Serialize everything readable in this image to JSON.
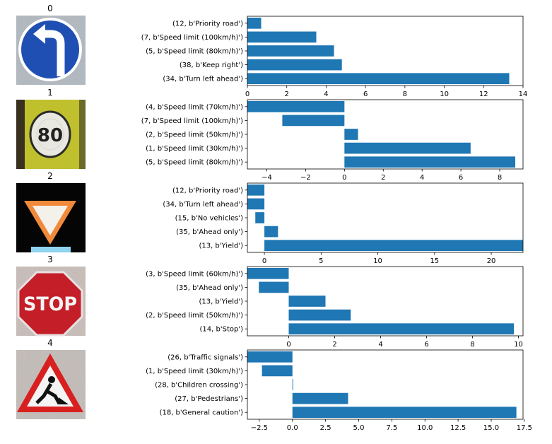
{
  "chart_data": [
    {
      "type": "bar",
      "orientation": "horizontal",
      "image_title": "0",
      "image_description": "blue circular sign with white arrow turning left",
      "categories": [
        "(34, b'Turn left ahead')",
        "(38, b'Keep right')",
        "(5, b'Speed limit (80km/h)')",
        "(7, b'Speed limit (100km/h)')",
        "(12, b'Priority road')"
      ],
      "values": [
        13.3,
        4.8,
        4.4,
        3.5,
        0.7
      ],
      "xlim": [
        0,
        14
      ],
      "xticks": [
        0,
        2,
        4,
        6,
        8,
        10,
        12,
        14
      ],
      "xtick_labels": [
        "0",
        "2",
        "4",
        "6",
        "8",
        "10",
        "12",
        "14"
      ],
      "bar_color": "#1f77b4"
    },
    {
      "type": "bar",
      "orientation": "horizontal",
      "image_title": "1",
      "image_description": "speed limit 80 sign on yellow background",
      "categories": [
        "(5, b'Speed limit (80km/h)')",
        "(1, b'Speed limit (30km/h)')",
        "(2, b'Speed limit (50km/h)')",
        "(7, b'Speed limit (100km/h)')",
        "(4, b'Speed limit (70km/h)')"
      ],
      "values": [
        8.8,
        6.5,
        0.7,
        -3.2,
        -5.0
      ],
      "xlim": [
        -5.0,
        9.2
      ],
      "xticks": [
        -4,
        -2,
        0,
        2,
        4,
        6,
        8
      ],
      "xtick_labels": [
        "−4",
        "−2",
        "0",
        "2",
        "4",
        "6",
        "8"
      ],
      "bar_color": "#1f77b4"
    },
    {
      "type": "bar",
      "orientation": "horizontal",
      "image_title": "2",
      "image_description": "yield triangle sign on black background",
      "categories": [
        "(13, b'Yield')",
        "(35, b'Ahead only')",
        "(15, b'No vehicles')",
        "(34, b'Turn left ahead')",
        "(12, b'Priority road')"
      ],
      "values": [
        22.8,
        1.2,
        -0.8,
        -1.5,
        -1.5
      ],
      "xlim": [
        -1.5,
        22.8
      ],
      "xticks": [
        0,
        5,
        10,
        15,
        20
      ],
      "xtick_labels": [
        "0",
        "5",
        "10",
        "15",
        "20"
      ],
      "bar_color": "#1f77b4"
    },
    {
      "type": "bar",
      "orientation": "horizontal",
      "image_title": "3",
      "image_description": "red octagonal stop sign",
      "categories": [
        "(14, b'Stop')",
        "(2, b'Speed limit (50km/h)')",
        "(13, b'Yield')",
        "(35, b'Ahead only')",
        "(3, b'Speed limit (60km/h)')"
      ],
      "values": [
        9.8,
        2.7,
        1.6,
        -1.3,
        -1.8
      ],
      "xlim": [
        -1.8,
        10.2
      ],
      "xticks": [
        0,
        2,
        4,
        6,
        8,
        10
      ],
      "xtick_labels": [
        "0",
        "2",
        "4",
        "6",
        "8",
        "10"
      ],
      "bar_color": "#1f77b4"
    },
    {
      "type": "bar",
      "orientation": "horizontal",
      "image_title": "4",
      "image_description": "red triangle road work sign",
      "categories": [
        "(18, b'General caution')",
        "(27, b'Pedestrians')",
        "(28, b'Children crossing')",
        "(1, b'Speed limit (30km/h)')",
        "(26, b'Traffic signals')"
      ],
      "values": [
        16.9,
        4.2,
        0.05,
        -2.3,
        -3.4
      ],
      "xlim": [
        -3.4,
        17.4
      ],
      "xticks": [
        -2.5,
        0,
        2.5,
        5,
        7.5,
        10,
        12.5,
        15,
        17.5
      ],
      "xtick_labels": [
        "−2.5",
        "0.0",
        "2.5",
        "5.0",
        "7.5",
        "10.0",
        "12.5",
        "15.0",
        "17.5"
      ],
      "bar_color": "#1f77b4"
    }
  ]
}
